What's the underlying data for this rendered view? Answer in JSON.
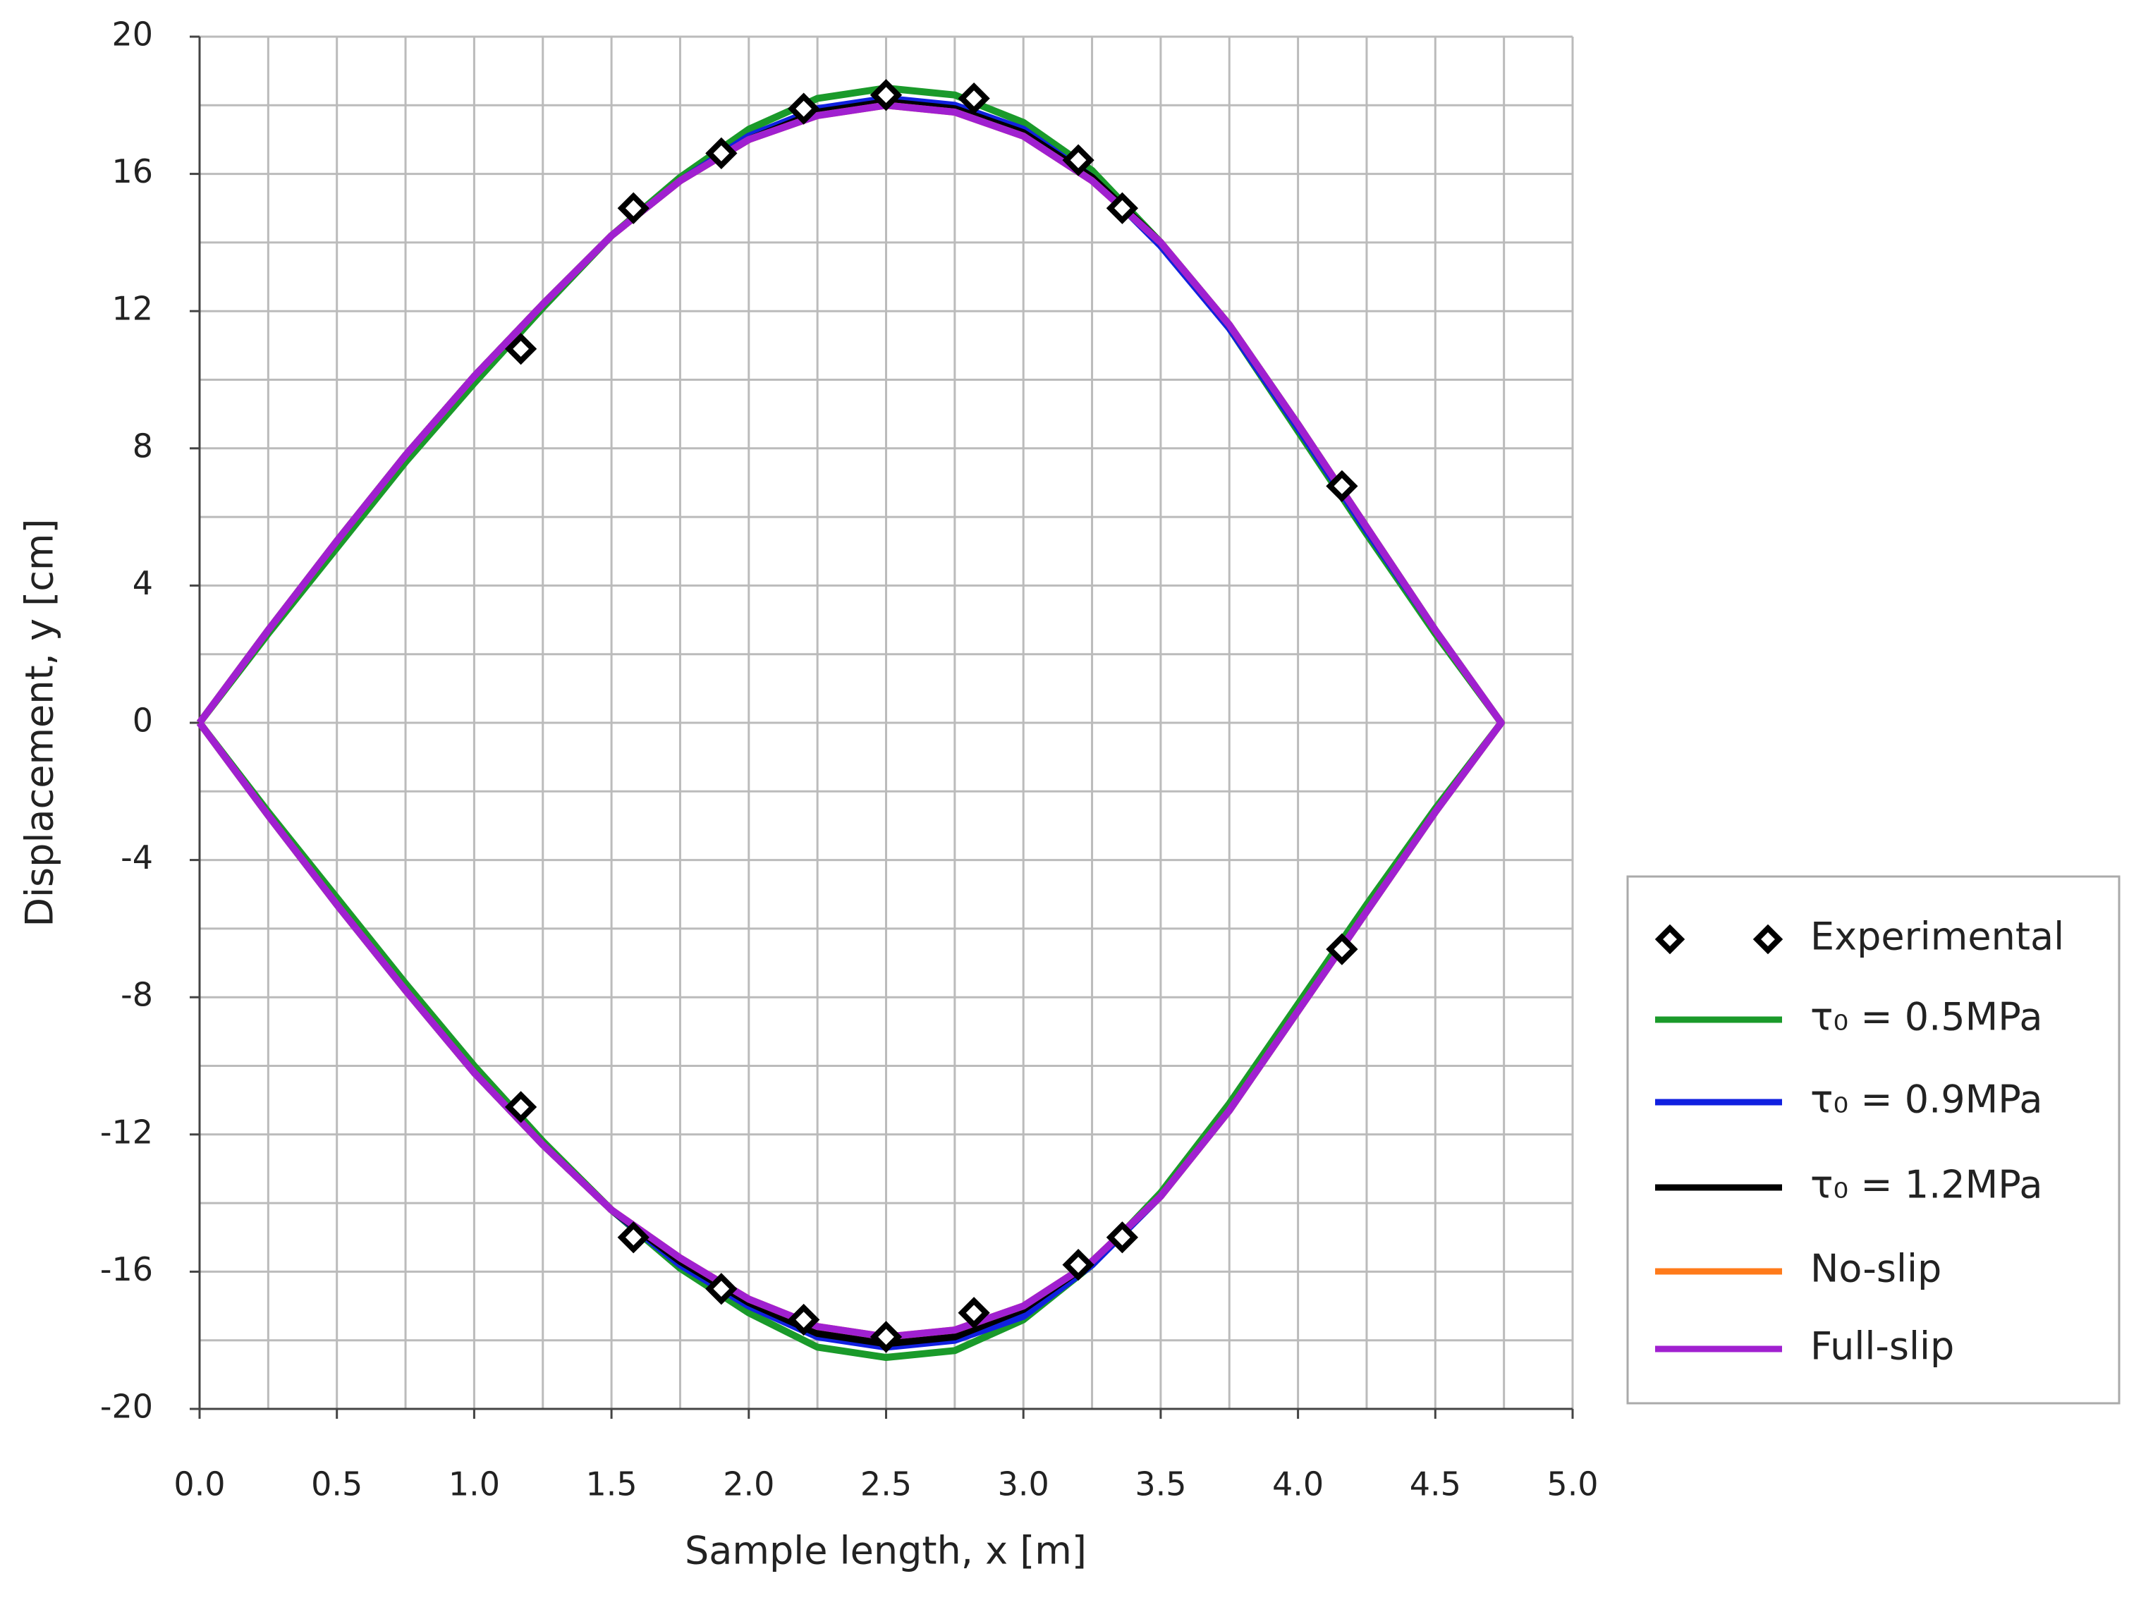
{
  "chart_data": {
    "type": "line",
    "xlabel": "Sample length, x [m]",
    "ylabel": "Displacement, y [cm]",
    "xlim": [
      0,
      5
    ],
    "ylim": [
      -20,
      20
    ],
    "xticks": [
      {
        "value": 0,
        "label": "0.0"
      },
      {
        "value": 0.5,
        "label": "0.5"
      },
      {
        "value": 1,
        "label": "1.0"
      },
      {
        "value": 1.5,
        "label": "1.5"
      },
      {
        "value": 2,
        "label": "2.0"
      },
      {
        "value": 2.5,
        "label": "2.5"
      },
      {
        "value": 3,
        "label": "3.0"
      },
      {
        "value": 3.5,
        "label": "3.5"
      },
      {
        "value": 4,
        "label": "4.0"
      },
      {
        "value": 4.5,
        "label": "4.5"
      },
      {
        "value": 5,
        "label": "5.0"
      }
    ],
    "yticks": [
      -20,
      -16,
      -12,
      -8,
      -4,
      0,
      4,
      8,
      12,
      16,
      20
    ],
    "grid": true,
    "legend": "right",
    "x": [
      0,
      0.25,
      0.5,
      0.75,
      1.0,
      1.25,
      1.5,
      1.75,
      2.0,
      2.25,
      2.5,
      2.75,
      3.0,
      3.25,
      3.5,
      3.75,
      4.0,
      4.25,
      4.5,
      4.74,
      4.5,
      4.25,
      4.0,
      3.75,
      3.5,
      3.25,
      3.0,
      2.75,
      2.5,
      2.25,
      2.0,
      1.75,
      1.5,
      1.25,
      1.0,
      0.75,
      0.5,
      0.25,
      0
    ],
    "series": [
      {
        "name": "Experimental",
        "color": "#000000",
        "marker": "diamond",
        "x": [
          1.17,
          1.58,
          1.9,
          2.2,
          2.5,
          2.82,
          3.2,
          3.36,
          4.16,
          1.17,
          1.58,
          1.9,
          2.2,
          2.5,
          2.82,
          3.2,
          3.36,
          4.16
        ],
        "values": [
          10.9,
          15.0,
          16.6,
          17.9,
          18.3,
          18.2,
          16.4,
          15.0,
          6.9,
          -11.2,
          -15.0,
          -16.5,
          -17.4,
          -17.9,
          -17.2,
          -15.8,
          -15.0,
          -6.6
        ]
      },
      {
        "name": "τ₀ = 0.5MPa",
        "color": "#1a9a2a",
        "values": [
          0,
          2.6,
          5.1,
          7.6,
          9.9,
          12.1,
          14.2,
          15.9,
          17.3,
          18.2,
          18.5,
          18.3,
          17.5,
          16.1,
          14.0,
          11.5,
          8.5,
          5.5,
          2.6,
          0,
          -2.5,
          -5.3,
          -8.2,
          -11.1,
          -13.7,
          -15.8,
          -17.4,
          -18.3,
          -18.5,
          -18.2,
          -17.2,
          -15.9,
          -14.2,
          -12.2,
          -10.0,
          -7.6,
          -5.1,
          -2.6,
          0
        ]
      },
      {
        "name": "τ₀ = 0.9MPa",
        "color": "#1020e0",
        "values": [
          0,
          2.7,
          5.3,
          7.8,
          10.1,
          12.2,
          14.2,
          15.8,
          17.1,
          17.9,
          18.2,
          18.0,
          17.3,
          15.9,
          13.9,
          11.5,
          8.6,
          5.6,
          2.7,
          0,
          -2.6,
          -5.5,
          -8.4,
          -11.3,
          -13.8,
          -15.8,
          -17.3,
          -18.0,
          -18.2,
          -17.9,
          -17.0,
          -15.8,
          -14.2,
          -12.3,
          -10.2,
          -7.8,
          -5.3,
          -2.7,
          0
        ]
      },
      {
        "name": "τ₀ = 1.2MPa",
        "color": "#000000",
        "values": [
          0,
          2.7,
          5.3,
          7.8,
          10.1,
          12.2,
          14.2,
          15.8,
          17.0,
          17.8,
          18.1,
          17.9,
          17.2,
          15.9,
          14.0,
          11.6,
          8.7,
          5.7,
          2.7,
          0,
          -2.6,
          -5.5,
          -8.4,
          -11.3,
          -13.8,
          -15.7,
          -17.1,
          -17.9,
          -18.1,
          -17.8,
          -16.9,
          -15.7,
          -14.2,
          -12.3,
          -10.2,
          -7.8,
          -5.3,
          -2.7,
          0
        ]
      },
      {
        "name": "No-slip",
        "color": "#ff7a1a",
        "values": [
          0,
          2.7,
          5.3,
          7.8,
          10.1,
          12.2,
          14.2,
          15.8,
          17.0,
          17.7,
          18.0,
          17.8,
          17.1,
          15.8,
          14.0,
          11.6,
          8.7,
          5.7,
          2.7,
          0,
          -2.6,
          -5.5,
          -8.4,
          -11.3,
          -13.8,
          -15.7,
          -17.0,
          -17.7,
          -17.9,
          -17.6,
          -16.8,
          -15.6,
          -14.2,
          -12.3,
          -10.2,
          -7.8,
          -5.3,
          -2.7,
          0
        ]
      },
      {
        "name": "Full-slip",
        "color": "#a020d0",
        "values": [
          0,
          2.7,
          5.3,
          7.8,
          10.1,
          12.2,
          14.2,
          15.8,
          17.0,
          17.7,
          18.0,
          17.8,
          17.1,
          15.8,
          14.0,
          11.6,
          8.7,
          5.7,
          2.7,
          0,
          -2.6,
          -5.5,
          -8.4,
          -11.3,
          -13.8,
          -15.7,
          -17.0,
          -17.7,
          -17.9,
          -17.6,
          -16.8,
          -15.6,
          -14.2,
          -12.3,
          -10.2,
          -7.8,
          -5.3,
          -2.7,
          0
        ]
      }
    ]
  }
}
